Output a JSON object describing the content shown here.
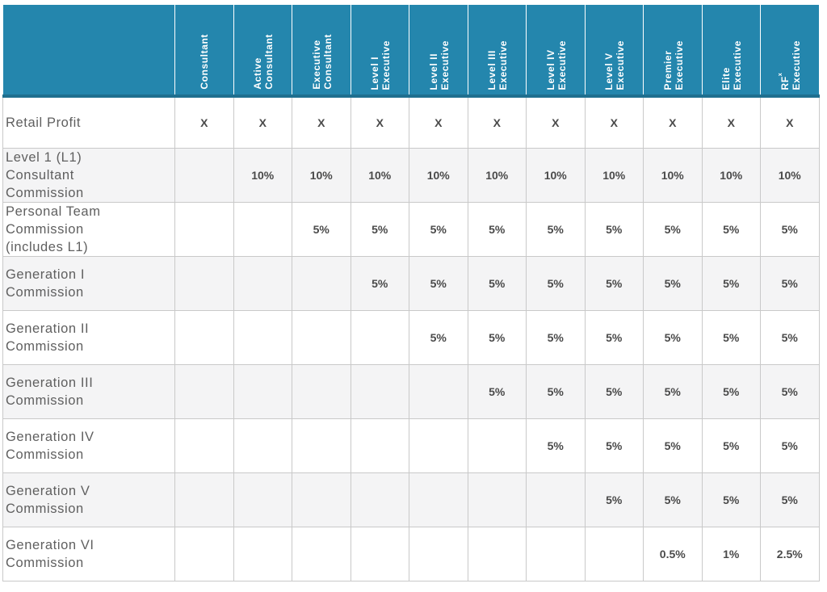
{
  "table": {
    "columns": [
      {
        "lines": [
          "Consultant"
        ],
        "sup": ""
      },
      {
        "lines": [
          "Active",
          "Consultant"
        ],
        "sup": ""
      },
      {
        "lines": [
          "Executive",
          "Consultant"
        ],
        "sup": ""
      },
      {
        "lines": [
          "Level I",
          "Executive"
        ],
        "sup": ""
      },
      {
        "lines": [
          "Level II",
          "Executive"
        ],
        "sup": ""
      },
      {
        "lines": [
          "Level III",
          "Executive"
        ],
        "sup": ""
      },
      {
        "lines": [
          "Level IV",
          "Executive"
        ],
        "sup": ""
      },
      {
        "lines": [
          "Level V",
          "Executive"
        ],
        "sup": ""
      },
      {
        "lines": [
          "Premier",
          "Executive"
        ],
        "sup": ""
      },
      {
        "lines": [
          "Elite",
          "Executive"
        ],
        "sup": ""
      },
      {
        "lines": [
          "RF",
          "Executive"
        ],
        "sup": "x"
      }
    ],
    "rows": [
      {
        "label": [
          "Retail Profit"
        ],
        "values": [
          "X",
          "X",
          "X",
          "X",
          "X",
          "X",
          "X",
          "X",
          "X",
          "X",
          "X"
        ]
      },
      {
        "label": [
          "Level 1 (L1)",
          "Consultant",
          "Commission"
        ],
        "values": [
          "",
          "10%",
          "10%",
          "10%",
          "10%",
          "10%",
          "10%",
          "10%",
          "10%",
          "10%",
          "10%"
        ]
      },
      {
        "label": [
          "Personal Team",
          "Commission",
          "(includes L1)"
        ],
        "values": [
          "",
          "",
          "5%",
          "5%",
          "5%",
          "5%",
          "5%",
          "5%",
          "5%",
          "5%",
          "5%"
        ]
      },
      {
        "label": [
          "Generation I",
          "Commission"
        ],
        "values": [
          "",
          "",
          "",
          "5%",
          "5%",
          "5%",
          "5%",
          "5%",
          "5%",
          "5%",
          "5%"
        ]
      },
      {
        "label": [
          "Generation II",
          "Commission"
        ],
        "values": [
          "",
          "",
          "",
          "",
          "5%",
          "5%",
          "5%",
          "5%",
          "5%",
          "5%",
          "5%"
        ]
      },
      {
        "label": [
          "Generation III",
          "Commission"
        ],
        "values": [
          "",
          "",
          "",
          "",
          "",
          "5%",
          "5%",
          "5%",
          "5%",
          "5%",
          "5%"
        ]
      },
      {
        "label": [
          "Generation IV",
          "Commission"
        ],
        "values": [
          "",
          "",
          "",
          "",
          "",
          "",
          "5%",
          "5%",
          "5%",
          "5%",
          "5%"
        ]
      },
      {
        "label": [
          "Generation V",
          "Commission"
        ],
        "values": [
          "",
          "",
          "",
          "",
          "",
          "",
          "",
          "5%",
          "5%",
          "5%",
          "5%"
        ]
      },
      {
        "label": [
          "Generation VI",
          "Commission"
        ],
        "values": [
          "",
          "",
          "",
          "",
          "",
          "",
          "",
          "",
          "0.5%",
          "1%",
          "2.5%"
        ]
      }
    ]
  }
}
